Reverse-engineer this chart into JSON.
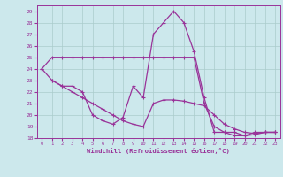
{
  "xlabel": "Windchill (Refroidissement éolien,°C)",
  "bg_color": "#cce8ec",
  "grid_color": "#aacccc",
  "line_color": "#993399",
  "xlim": [
    -0.5,
    23.5
  ],
  "ylim": [
    18,
    29.5
  ],
  "xticks": [
    0,
    1,
    2,
    3,
    4,
    5,
    6,
    7,
    8,
    9,
    10,
    11,
    12,
    13,
    14,
    15,
    16,
    17,
    18,
    19,
    20,
    21,
    22,
    23
  ],
  "yticks": [
    18,
    19,
    20,
    21,
    22,
    23,
    24,
    25,
    26,
    27,
    28,
    29
  ],
  "series1": {
    "x": [
      0,
      1,
      2,
      3,
      4,
      5,
      6,
      7,
      8,
      9,
      10,
      11,
      12,
      13,
      14,
      15,
      16,
      17,
      18,
      19,
      20,
      21,
      22,
      23
    ],
    "y": [
      24,
      25,
      25,
      25,
      25,
      25,
      25,
      25,
      25,
      25,
      25,
      25,
      25,
      25,
      25,
      25,
      21,
      19,
      18.5,
      18.5,
      18.2,
      18.5,
      18.5,
      18.5
    ]
  },
  "series2": {
    "x": [
      1,
      2,
      3,
      4,
      5,
      6,
      7,
      8,
      9,
      10,
      11,
      12,
      13,
      14,
      15,
      16,
      17,
      18,
      19,
      20,
      21,
      22,
      23
    ],
    "y": [
      23,
      22.5,
      22.5,
      22,
      20,
      19.5,
      19.2,
      19.8,
      22.5,
      21.5,
      27,
      28,
      29,
      28,
      25.5,
      21.5,
      18.5,
      18.5,
      18.2,
      18.2,
      18.3,
      18.5,
      18.5
    ]
  },
  "series3": {
    "x": [
      0,
      1,
      2,
      3,
      4,
      5,
      6,
      7,
      8,
      9,
      10,
      11,
      12,
      13,
      14,
      15,
      16,
      17,
      18,
      19,
      20,
      21,
      22,
      23
    ],
    "y": [
      24,
      23,
      22.5,
      22,
      21.5,
      21.0,
      20.5,
      20.0,
      19.5,
      19.2,
      19.0,
      21.0,
      21.3,
      21.3,
      21.2,
      21.0,
      20.8,
      20.0,
      19.2,
      18.8,
      18.5,
      18.4,
      18.5,
      18.5
    ]
  }
}
